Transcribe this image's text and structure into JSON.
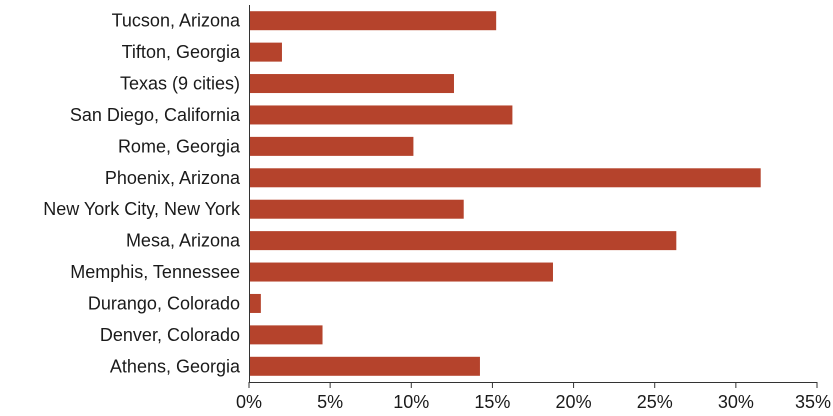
{
  "chart_data": {
    "type": "bar",
    "orientation": "horizontal",
    "title": "",
    "xlabel": "",
    "ylabel": "",
    "categories": [
      "Tucson, Arizona",
      "Tifton, Georgia",
      "Texas (9 cities)",
      "San Diego, California",
      "Rome, Georgia",
      "Phoenix, Arizona",
      "New York City, New York",
      "Mesa, Arizona",
      "Memphis, Tennessee",
      "Durango, Colorado",
      "Denver, Colorado",
      "Athens, Georgia"
    ],
    "values": [
      15.2,
      2.0,
      12.6,
      16.2,
      10.1,
      31.5,
      13.2,
      26.3,
      18.7,
      0.7,
      4.5,
      14.2
    ],
    "xlim": [
      0,
      35
    ],
    "xticks": [
      0,
      5,
      10,
      15,
      20,
      25,
      30,
      35
    ],
    "tick_labels": [
      "0%",
      "5%",
      "10%",
      "15%",
      "20%",
      "25%",
      "30%",
      "35%"
    ],
    "grid": false,
    "legend": "none",
    "bar_color": "#b5432c"
  }
}
